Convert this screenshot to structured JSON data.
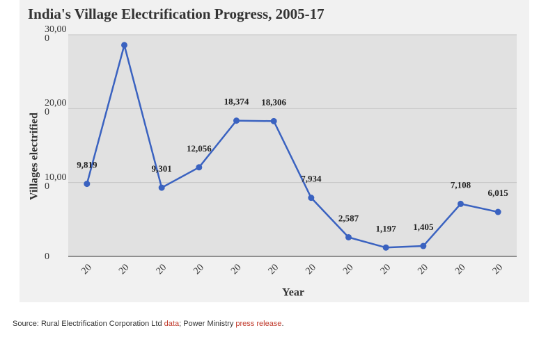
{
  "chart_data": {
    "type": "line",
    "title": "India's Village Electrification Progress, 2005-17",
    "x_label": "Year",
    "y_label": "Villages electrified",
    "categories": [
      "20",
      "20",
      "20",
      "20",
      "20",
      "20",
      "20",
      "20",
      "20",
      "20",
      "20",
      "20"
    ],
    "series": [
      {
        "name": "Villages electrified",
        "color": "#3a62c0",
        "values": [
          9819,
          28600,
          9301,
          12056,
          18374,
          18306,
          7934,
          2587,
          1197,
          1405,
          7108,
          6015
        ]
      }
    ],
    "value_labels": [
      "9,819",
      null,
      "9,301",
      "12,056",
      "18,374",
      "18,306",
      "7,934",
      "2,587",
      "1,197",
      "1,405",
      "7,108",
      "6,015"
    ],
    "ylim": [
      0,
      30000
    ],
    "yticks": [
      0,
      {
        "value": 10000,
        "label": "10,000"
      },
      {
        "value": 20000,
        "label": "20,000"
      },
      {
        "value": 30000,
        "label": "30,000"
      }
    ],
    "grid": true
  },
  "source": {
    "prefix": "Source: Rural Electrification Corporation Ltd ",
    "link1": "data",
    "middle": "; Power Ministry ",
    "link2": "press release",
    "suffix": "."
  }
}
